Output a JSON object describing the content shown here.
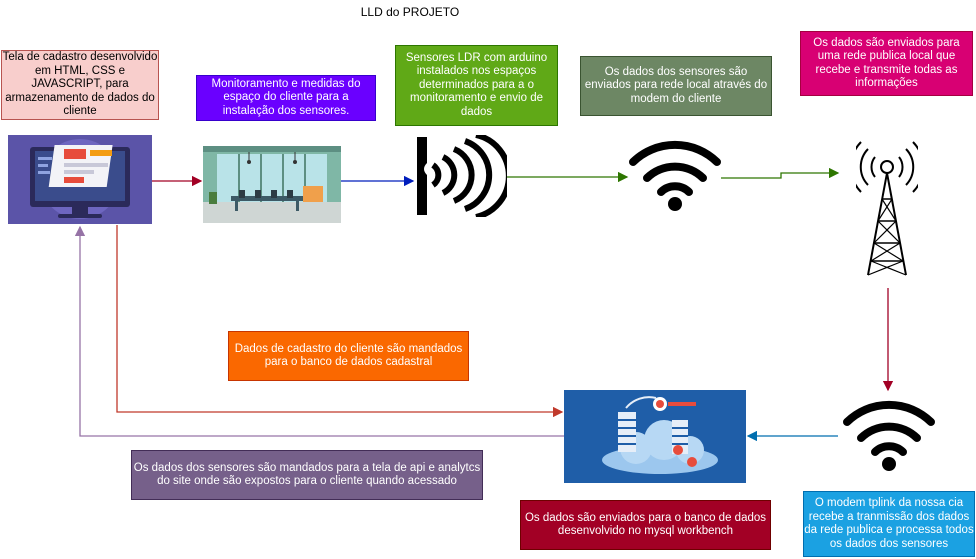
{
  "title": "LLD do PROJETO",
  "boxes": {
    "cadastro": "Tela de cadastro desenvolvido em HTML, CSS e JAVASCRIPT, para armazenamento de dados do cliente",
    "monitoramento": "Monitoramento e medidas do espaço do cliente para a instalação dos sensores.",
    "sensores": "Sensores LDR com arduino instalados nos espaços determinados para a o monitoramento e envio de dados",
    "rede_local": "Os dados dos sensores são enviados para rede local através do modem do cliente",
    "rede_publica": "Os dados são enviados para uma rede publica local que recebe e transmite todas as informações",
    "banco_cadastral": "Dados de cadastro do cliente são mandados para o banco de dados cadastral",
    "api": "Os dados dos sensores são mandados para a tela de api e analytcs do site onde são expostos para o cliente quando acessado",
    "mysql": "Os dados são enviados para o banco de dados desenvolvido no mysql workbench",
    "modem": "O modem tplink da nossa cia recebe a tranmissão dos dados da rede publica e processa todos os dados dos sensores"
  },
  "colors": {
    "cadastro_bg": "#f8cecc",
    "cadastro_border": "#b85450",
    "monitoramento_bg": "#6a00ff",
    "sensores_bg": "#60a917",
    "rede_local_bg": "#6d8764",
    "rede_publica_bg": "#d80073",
    "banco_cadastral_bg": "#fa6800",
    "api_bg": "#76608a",
    "mysql_bg": "#a20025",
    "modem_bg": "#1ba1e2",
    "edge_red": "#a20025",
    "edge_blue": "#001dbc",
    "edge_green": "#2d7600",
    "edge_purple": "#9673a6",
    "edge_orange": "#c0392b"
  },
  "icons": [
    "computer-screen-icon",
    "office-room-icon",
    "ldr-sensor-icon",
    "wifi-icon",
    "radio-tower-icon",
    "wifi-icon",
    "cloud-database-icon"
  ]
}
